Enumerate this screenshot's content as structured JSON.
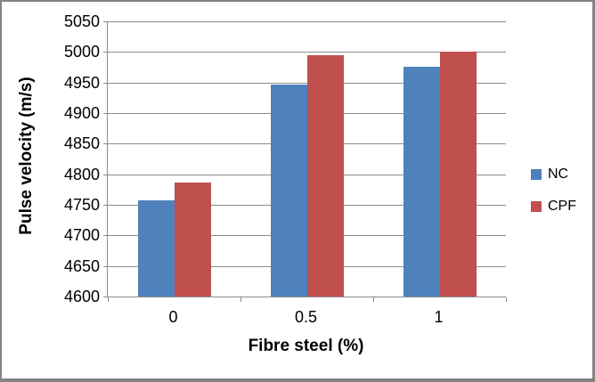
{
  "chart_data": {
    "type": "bar",
    "title": "",
    "categories": [
      "0",
      "0.5",
      "1"
    ],
    "series": [
      {
        "name": "NC",
        "color": "#4F81BD",
        "values": [
          4757,
          4946,
          4976
        ]
      },
      {
        "name": "CPF",
        "color": "#C0504D",
        "values": [
          4787,
          4995,
          5000
        ]
      }
    ],
    "xlabel": "Fibre steel (%)",
    "ylabel": "Pulse velocity (m/s)",
    "ylim": [
      4600,
      5050
    ],
    "ytick_step": 50,
    "yticks": [
      "4600",
      "4650",
      "4700",
      "4750",
      "4800",
      "4850",
      "4900",
      "4950",
      "5000",
      "5050"
    ],
    "grid": true,
    "legend_position": "right",
    "plot_background": "#FFFFFF"
  },
  "frame": {
    "border_color": "#838383",
    "grid_color": "#8C8C8C",
    "text_color": "#000000",
    "background": "#FFFFFF"
  }
}
